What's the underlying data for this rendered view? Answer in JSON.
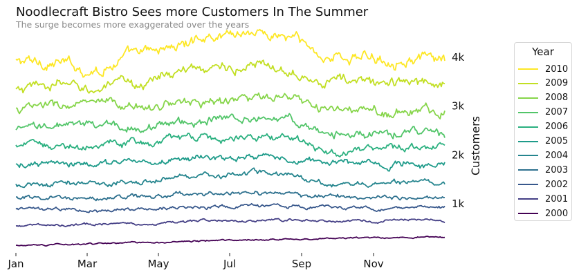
{
  "title": "Noodlecraft Bistro Sees more Customers In The Summer",
  "subtitle": "The surge becomes more exaggerated over the years",
  "chart_data": {
    "type": "line",
    "x_tick_labels": [
      "Jan",
      "Mar",
      "May",
      "Jul",
      "Sep",
      "Nov"
    ],
    "y_axis": {
      "label": "Customers",
      "position": "right",
      "tick_labels": [
        "1k",
        "2k",
        "3k",
        "4k"
      ],
      "ticks": [
        1000,
        2000,
        3000,
        4000
      ],
      "range": [
        0,
        4400
      ]
    },
    "grid": false,
    "legend": {
      "title": "Year",
      "placement": "right"
    },
    "note": "Series are vertically stacked; values are approximate smoothed daily customers read from the plot.",
    "series": [
      {
        "name": "2010",
        "color": "#fde725",
        "monthly": [
          3900,
          3880,
          3720,
          4030,
          4200,
          4450,
          4520,
          4400,
          4000,
          3980,
          3960,
          3920
        ]
      },
      {
        "name": "2009",
        "color": "#c2df23",
        "monthly": [
          3300,
          3420,
          3350,
          3430,
          3650,
          3800,
          3780,
          3760,
          3520,
          3480,
          3470,
          3460
        ]
      },
      {
        "name": "2008",
        "color": "#86d549",
        "monthly": [
          2920,
          3000,
          3020,
          2950,
          3050,
          3080,
          3150,
          3100,
          2930,
          2860,
          2890,
          2870
        ]
      },
      {
        "name": "2007",
        "color": "#52c569",
        "monthly": [
          2480,
          2570,
          2600,
          2550,
          2650,
          2700,
          2780,
          2700,
          2420,
          2380,
          2470,
          2420
        ]
      },
      {
        "name": "2006",
        "color": "#2ab07f",
        "monthly": [
          2180,
          2200,
          2150,
          2220,
          2300,
          2320,
          2380,
          2330,
          2050,
          2100,
          2150,
          2120
        ]
      },
      {
        "name": "2005",
        "color": "#1e9b8a",
        "monthly": [
          1760,
          1780,
          1800,
          1820,
          1870,
          1900,
          1960,
          1900,
          1830,
          1800,
          1820,
          1830
        ]
      },
      {
        "name": "2004",
        "color": "#25858e",
        "monthly": [
          1360,
          1380,
          1400,
          1430,
          1520,
          1560,
          1620,
          1560,
          1400,
          1420,
          1420,
          1420
        ]
      },
      {
        "name": "2003",
        "color": "#2d708e",
        "monthly": [
          1100,
          1120,
          1110,
          1120,
          1150,
          1190,
          1210,
          1200,
          1130,
          1140,
          1130,
          1130
        ]
      },
      {
        "name": "2002",
        "color": "#38588c",
        "monthly": [
          860,
          870,
          860,
          880,
          900,
          920,
          940,
          960,
          900,
          890,
          900,
          900
        ]
      },
      {
        "name": "2001",
        "color": "#433e85",
        "monthly": [
          520,
          550,
          560,
          580,
          610,
          640,
          650,
          660,
          630,
          620,
          650,
          640
        ]
      },
      {
        "name": "2000",
        "color": "#440154",
        "monthly": [
          120,
          140,
          160,
          180,
          200,
          230,
          250,
          260,
          270,
          280,
          290,
          300
        ]
      }
    ]
  }
}
